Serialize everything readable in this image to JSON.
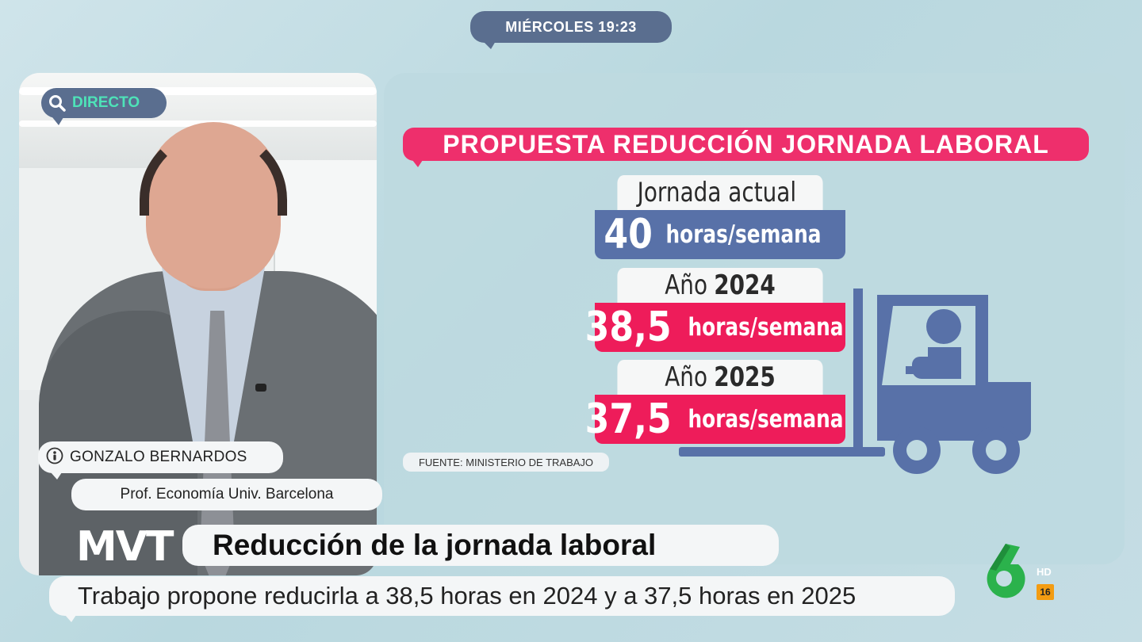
{
  "broadcast": {
    "time_label": "MIÉRCOLES 19:23",
    "live_label": "DIRECTO",
    "channel_hd": "HD",
    "age_rating": "16"
  },
  "guest": {
    "name": "GONZALO BERNARDOS",
    "title": "Prof. Economía Univ. Barcelona"
  },
  "infographic": {
    "title": "PROPUESTA REDUCCIÓN JORNADA LABORAL",
    "items": [
      {
        "label": "Jornada actual",
        "label_bold": "",
        "value": "40",
        "unit": "horas/semana",
        "color": "#5871a8"
      },
      {
        "label": "Año",
        "label_bold": "2024",
        "value": "38,5",
        "unit": "horas/semana",
        "color": "#ee1c5a"
      },
      {
        "label": "Año",
        "label_bold": "2025",
        "value": "37,5",
        "unit": "horas/semana",
        "color": "#ee1c5a"
      }
    ],
    "source": "FUENTE: MINISTERIO DE TRABAJO",
    "icon": "forklift-icon"
  },
  "lower_third": {
    "program_logo": "MVT",
    "headline": "Reducción de la jornada laboral",
    "subline": "Trabajo propone reducirla a 38,5 horas en 2024 y a 37,5 horas en 2025"
  },
  "colors": {
    "accent_pink": "#ee2f6c",
    "accent_blue": "#5a6e8f",
    "live_green": "#4ee3b8",
    "channel_green": "#2bb24c"
  }
}
